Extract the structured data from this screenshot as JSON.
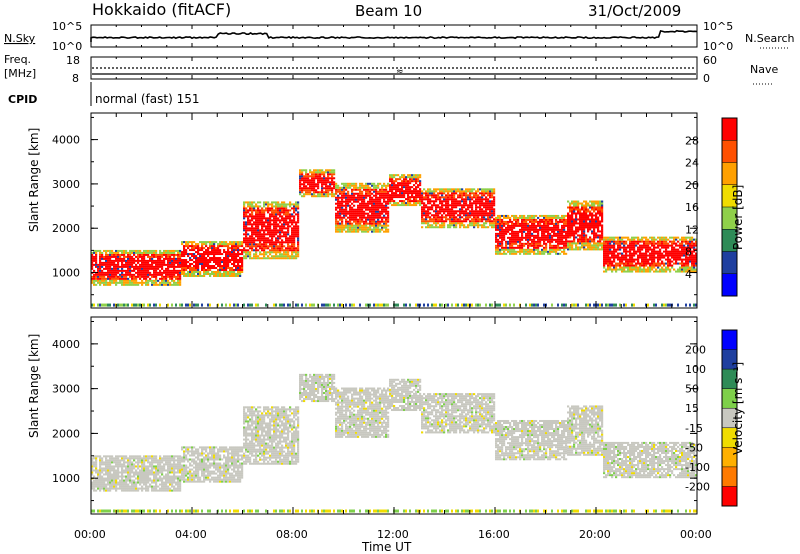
{
  "header": {
    "station": "Hokkaido (fitACF)",
    "beam": "Beam 10",
    "date": "31/Oct/2009"
  },
  "top_panels": {
    "nsky_label": "N.Sky",
    "nsky_ticks": [
      "10^5",
      "10^0"
    ],
    "nsearch_label": "N.Search",
    "nsearch_ticks": [
      "10^5",
      "10^0"
    ],
    "freq_label": "Freq.",
    "freq_unit": "[MHz]",
    "freq_ticks": [
      "18",
      "8"
    ],
    "nave_label": "Nave",
    "nave_ticks": [
      "60",
      "0"
    ],
    "cpid_label": "CPID",
    "cpid_value": "normal (fast) 151"
  },
  "x_axis": {
    "label": "Time UT",
    "ticks": [
      "00:00",
      "04:00",
      "08:00",
      "12:00",
      "16:00",
      "20:00",
      "00:00"
    ]
  },
  "colors": {
    "power": [
      "#0000ff",
      "#1f3f9f",
      "#2e8b57",
      "#8fd04a",
      "#f0dc00",
      "#ffa000",
      "#ff5000",
      "#ff0000"
    ],
    "velocity": [
      "#ff0000",
      "#ff7a00",
      "#ffb000",
      "#f0dc00",
      "#c8c8c0",
      "#7ed04a",
      "#2e8b57",
      "#1f3f9f",
      "#0000ff"
    ]
  },
  "chart_data": [
    {
      "type": "heatmap",
      "name": "power",
      "ylabel": "Slant Range [km]",
      "yticks": [
        "4000",
        "3000",
        "2000",
        "1000"
      ],
      "ylim": [
        200,
        4600
      ],
      "xlim": [
        0,
        24
      ],
      "colorbar_label": "Power [dB]",
      "colorbar_ticks": [
        "28",
        "24",
        "20",
        "16",
        "12",
        "8",
        "4"
      ],
      "bands": [
        {
          "t0": 0.0,
          "t1": 3.5,
          "r0": 700,
          "r1": 1500
        },
        {
          "t0": 3.5,
          "t1": 6.0,
          "r0": 900,
          "r1": 1700
        },
        {
          "t0": 6.0,
          "t1": 8.2,
          "r0": 1300,
          "r1": 2600
        },
        {
          "t0": 8.0,
          "t1": 9.6,
          "r0": 2700,
          "r1": 3300
        },
        {
          "t0": 9.6,
          "t1": 11.8,
          "r0": 1900,
          "r1": 3000
        },
        {
          "t0": 11.8,
          "t1": 13.0,
          "r0": 2500,
          "r1": 3200
        },
        {
          "t0": 13.0,
          "t1": 16.0,
          "r0": 2000,
          "r1": 2900
        },
        {
          "t0": 16.0,
          "t1": 18.8,
          "r0": 1400,
          "r1": 2300
        },
        {
          "t0": 18.8,
          "t1": 20.2,
          "r0": 1500,
          "r1": 2600
        },
        {
          "t0": 20.2,
          "t1": 24.0,
          "r0": 1000,
          "r1": 1800
        }
      ]
    },
    {
      "type": "heatmap",
      "name": "velocity",
      "ylabel": "Slant Range [km]",
      "yticks": [
        "4000",
        "3000",
        "2000",
        "1000"
      ],
      "ylim": [
        200,
        4600
      ],
      "xlim": [
        0,
        24
      ],
      "colorbar_label": "Velocity [m s⁻¹]",
      "colorbar_ticks": [
        "200",
        "100",
        "50",
        "15",
        "-15",
        "-50",
        "-100",
        "-200"
      ]
    }
  ]
}
